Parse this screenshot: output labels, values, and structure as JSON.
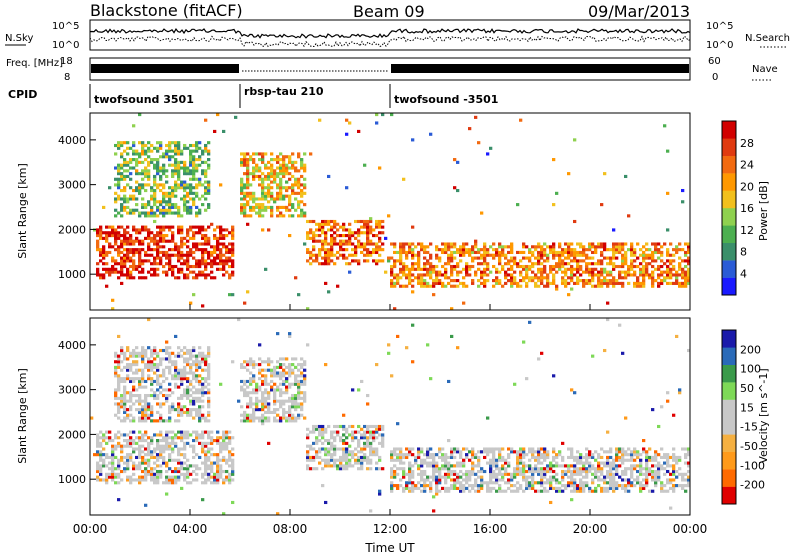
{
  "header": {
    "title": "Blackstone (fitACF)",
    "beam": "Beam 09",
    "date": "09/Mar/2013"
  },
  "colors": {
    "power_scale": [
      "#1a1aff",
      "#2a5bd6",
      "#3a8f6a",
      "#4caf50",
      "#8fd14f",
      "#f2c01d",
      "#ff9800",
      "#f26a10",
      "#e03a10",
      "#d10000"
    ],
    "velocity_scale": [
      "#e00000",
      "#ff6a00",
      "#ff9a1a",
      "#f5b041",
      "#c8c8c8",
      "#c8c8c8",
      "#7ed957",
      "#3a9a4a",
      "#2a6ab8",
      "#1a1aaa"
    ]
  },
  "chart_data": [
    {
      "type": "line",
      "panel": "noise",
      "series": [
        {
          "name": "N.Sky",
          "style": "solid"
        },
        {
          "name": "N.Search",
          "style": "dotted"
        }
      ],
      "left_ticks": [
        "10^5",
        "10^0"
      ],
      "right_ticks": [
        "10^5",
        "10^0"
      ]
    },
    {
      "type": "line",
      "panel": "frequency",
      "ylabel": "Freq. [MHz]",
      "left_ticks": [
        "18",
        "8"
      ],
      "right_ticks": [
        "60",
        "0"
      ],
      "series": [
        {
          "name": "Nave",
          "style": "dotted"
        }
      ]
    },
    {
      "type": "table",
      "panel": "cpid",
      "label": "CPID",
      "segments": [
        {
          "start": 0,
          "end": 6,
          "name": "twofsound 3501"
        },
        {
          "start": 6,
          "end": 12,
          "name": "rbsp-tau 210"
        },
        {
          "start": 12,
          "end": 24,
          "name": "twofsound -3501"
        }
      ]
    },
    {
      "type": "heatmap",
      "panel": "power",
      "ylabel": "Slant Range [km]",
      "yticks": [
        "1000",
        "2000",
        "3000",
        "4000"
      ],
      "ylim": [
        200,
        4600
      ],
      "xlim": [
        0,
        24
      ],
      "colorbar_label": "Power [dB]",
      "colorbar_ticks": [
        "4",
        "8",
        "12",
        "16",
        "20",
        "24",
        "28"
      ],
      "colorbar_range": [
        0,
        32
      ],
      "features": [
        {
          "t0": 0.3,
          "t1": 5.8,
          "r0": 900,
          "r1": 2100,
          "level": 0.9
        },
        {
          "t0": 1.0,
          "t1": 4.8,
          "r0": 2300,
          "r1": 4000,
          "level": 0.4
        },
        {
          "t0": 6.0,
          "t1": 8.6,
          "r0": 2300,
          "r1": 3700,
          "level": 0.6
        },
        {
          "t0": 8.6,
          "t1": 11.8,
          "r0": 1200,
          "r1": 2200,
          "level": 0.75
        },
        {
          "t0": 12.0,
          "t1": 24.0,
          "r0": 700,
          "r1": 1700,
          "level": 0.7
        }
      ]
    },
    {
      "type": "heatmap",
      "panel": "velocity",
      "ylabel": "Slant Range [km]",
      "yticks": [
        "1000",
        "2000",
        "3000",
        "4000"
      ],
      "ylim": [
        200,
        4600
      ],
      "xlim": [
        0,
        24
      ],
      "xticks": [
        "00:00",
        "04:00",
        "08:00",
        "12:00",
        "16:00",
        "20:00",
        "00:00"
      ],
      "xlabel": "Time UT",
      "colorbar_label": "Velocity [m s^-1]",
      "colorbar_ticks": [
        "-200",
        "-100",
        "-50",
        "-15",
        "15",
        "50",
        "100",
        "200"
      ],
      "features": [
        {
          "t0": 0.3,
          "t1": 5.8,
          "r0": 900,
          "r1": 2100,
          "level": 0.5
        },
        {
          "t0": 1.0,
          "t1": 4.8,
          "r0": 2300,
          "r1": 4000,
          "level": 0.45
        },
        {
          "t0": 6.0,
          "t1": 8.6,
          "r0": 2300,
          "r1": 3700,
          "level": 0.5
        },
        {
          "t0": 8.6,
          "t1": 11.8,
          "r0": 1200,
          "r1": 2200,
          "level": 0.65
        },
        {
          "t0": 12.0,
          "t1": 24.0,
          "r0": 700,
          "r1": 1700,
          "level": 0.5
        }
      ]
    }
  ]
}
